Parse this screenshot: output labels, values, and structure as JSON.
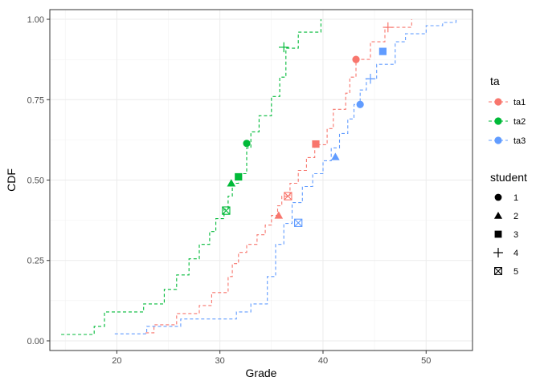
{
  "chart_data": {
    "type": "line",
    "xlabel": "Grade",
    "ylabel": "CDF",
    "xlim": [
      13.5,
      54.5
    ],
    "ylim": [
      -0.03,
      1.03
    ],
    "x_ticks": [
      20,
      30,
      40,
      50
    ],
    "x_tick_labels": [
      "20",
      "30",
      "40",
      "50"
    ],
    "y_ticks": [
      0,
      0.25,
      0.5,
      0.75,
      1
    ],
    "y_tick_labels": [
      "0.00",
      "0.25",
      "0.50",
      "0.75",
      "1.00"
    ],
    "grid": true,
    "legend_placement": "right",
    "color_legend": {
      "title": "ta",
      "entries": [
        {
          "label": "ta1",
          "color": "#F8766D"
        },
        {
          "label": "ta2",
          "color": "#00BA38"
        },
        {
          "label": "ta3",
          "color": "#619CFF"
        }
      ]
    },
    "shape_legend": {
      "title": "student",
      "entries": [
        {
          "label": "1",
          "shape": "circle"
        },
        {
          "label": "2",
          "shape": "triangle"
        },
        {
          "label": "3",
          "shape": "square"
        },
        {
          "label": "4",
          "shape": "plus"
        },
        {
          "label": "5",
          "shape": "boxed-x"
        }
      ]
    },
    "series": [
      {
        "name": "ta1",
        "color": "#F8766D",
        "cdf_x": [
          22.8,
          23.6,
          25.8,
          28.0,
          29.2,
          30.8,
          31.2,
          31.8,
          32.6,
          33.6,
          34.4,
          35.0,
          35.6,
          36.0,
          36.8,
          37.6,
          38.4,
          39.2,
          40.4,
          41.0,
          42.2,
          42.6,
          43.2,
          44.6,
          46.0,
          48.6
        ],
        "cdf_y": [
          0.025,
          0.05,
          0.085,
          0.11,
          0.15,
          0.2,
          0.24,
          0.275,
          0.3,
          0.33,
          0.36,
          0.39,
          0.42,
          0.45,
          0.49,
          0.53,
          0.57,
          0.61,
          0.66,
          0.72,
          0.77,
          0.82,
          0.875,
          0.93,
          0.975,
          1.0
        ],
        "markers": [
          {
            "student": "1",
            "x": 43.2,
            "y": 0.875
          },
          {
            "student": "2",
            "x": 35.7,
            "y": 0.39
          },
          {
            "student": "3",
            "x": 39.3,
            "y": 0.612
          },
          {
            "student": "4",
            "x": 46.3,
            "y": 0.975
          },
          {
            "student": "5",
            "x": 36.6,
            "y": 0.45
          }
        ]
      },
      {
        "name": "ta2",
        "color": "#00BA38",
        "cdf_x": [
          14.6,
          17.8,
          18.8,
          22.6,
          24.6,
          25.8,
          27.0,
          28.0,
          29.0,
          29.6,
          30.4,
          30.8,
          31.2,
          31.8,
          32.6,
          33.0,
          33.8,
          35.0,
          35.8,
          36.4,
          37.6,
          39.8
        ],
        "cdf_y": [
          0.02,
          0.045,
          0.09,
          0.115,
          0.16,
          0.205,
          0.255,
          0.3,
          0.34,
          0.38,
          0.41,
          0.45,
          0.49,
          0.52,
          0.6,
          0.65,
          0.7,
          0.76,
          0.82,
          0.91,
          0.96,
          1.0
        ],
        "markers": [
          {
            "student": "1",
            "x": 32.6,
            "y": 0.614
          },
          {
            "student": "2",
            "x": 31.1,
            "y": 0.49
          },
          {
            "student": "3",
            "x": 31.8,
            "y": 0.51
          },
          {
            "student": "4",
            "x": 36.2,
            "y": 0.913
          },
          {
            "student": "5",
            "x": 30.6,
            "y": 0.405
          }
        ]
      },
      {
        "name": "ta3",
        "color": "#619CFF",
        "cdf_x": [
          19.8,
          22.9,
          26.2,
          31.6,
          33.0,
          34.6,
          35.4,
          36.2,
          37.0,
          38.0,
          39.0,
          40.0,
          40.8,
          41.6,
          42.4,
          43.0,
          43.6,
          44.2,
          45.2,
          47.0,
          48.0,
          50.0,
          51.6,
          52.9
        ],
        "cdf_y": [
          0.022,
          0.045,
          0.068,
          0.09,
          0.115,
          0.2,
          0.3,
          0.365,
          0.43,
          0.48,
          0.52,
          0.56,
          0.6,
          0.645,
          0.69,
          0.735,
          0.78,
          0.815,
          0.86,
          0.93,
          0.955,
          0.98,
          0.99,
          1.0
        ],
        "markers": [
          {
            "student": "1",
            "x": 43.6,
            "y": 0.735
          },
          {
            "student": "2",
            "x": 41.2,
            "y": 0.572
          },
          {
            "student": "3",
            "x": 45.8,
            "y": 0.9
          },
          {
            "student": "4",
            "x": 44.6,
            "y": 0.815
          },
          {
            "student": "5",
            "x": 37.6,
            "y": 0.367
          }
        ]
      }
    ]
  }
}
